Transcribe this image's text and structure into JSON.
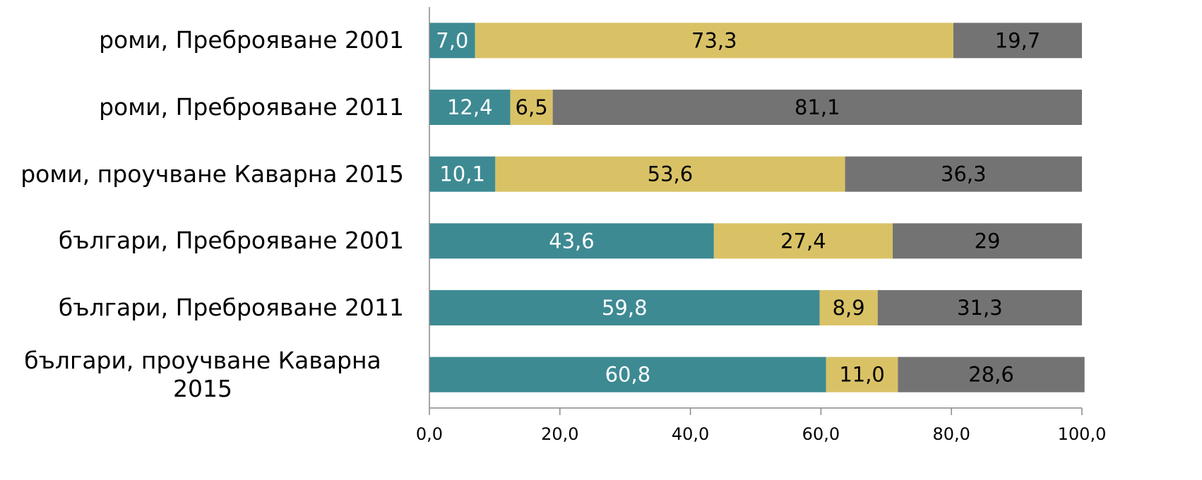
{
  "chart_data": {
    "type": "stacked_barh",
    "categories": [
      "роми, Преброяване 2001",
      "роми, Преброяване 2011",
      "роми, проучване Каварна 2015",
      "българи, Преброяване 2001",
      "българи, Преброяване 2011",
      "българи, проучване Каварна 2015"
    ],
    "series": [
      {
        "color": "#3d8a93",
        "label_color": "#ffffff",
        "values": [
          7.0,
          12.4,
          10.1,
          43.6,
          59.8,
          60.8
        ],
        "value_labels": [
          "7,0",
          "12,4",
          "10,1",
          "43,6",
          "59,8",
          "60,8"
        ]
      },
      {
        "color": "#d9c266",
        "label_color": "#000000",
        "values": [
          73.3,
          6.5,
          53.6,
          27.4,
          8.9,
          11.0
        ],
        "value_labels": [
          "73,3",
          "6,5",
          "53,6",
          "27,4",
          "8,9",
          "11,0"
        ]
      },
      {
        "color": "#737373",
        "label_color": "#000000",
        "values": [
          19.7,
          81.1,
          36.3,
          29,
          31.3,
          28.6
        ],
        "value_labels": [
          "19,7",
          "81,1",
          "36,3",
          "29",
          "31,3",
          "28,6"
        ]
      }
    ],
    "xlim": [
      0,
      100
    ],
    "xticks": [
      {
        "value": 0,
        "label": "0,0"
      },
      {
        "value": 20,
        "label": "20,0"
      },
      {
        "value": 40,
        "label": "40,0"
      },
      {
        "value": 60,
        "label": "60,0"
      },
      {
        "value": 80,
        "label": "80,0"
      },
      {
        "value": 100,
        "label": "100,0"
      }
    ]
  }
}
